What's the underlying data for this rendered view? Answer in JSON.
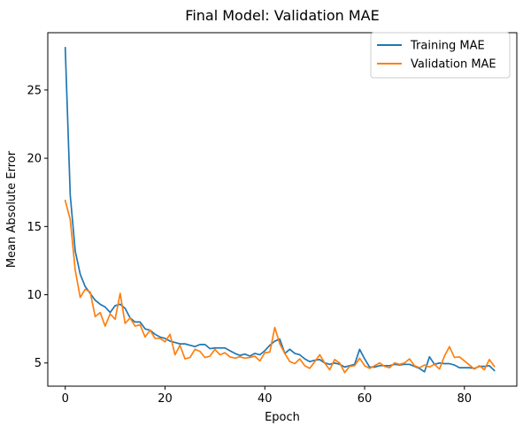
{
  "chart_data": {
    "type": "line",
    "title": "Final Model: Validation MAE",
    "xlabel": "Epoch",
    "ylabel": "Mean Absolute Error",
    "xlim": [
      -3.5,
      90.5
    ],
    "ylim": [
      3.3,
      29.2
    ],
    "xticks": [
      0,
      20,
      40,
      60,
      80
    ],
    "yticks": [
      5,
      10,
      15,
      20,
      25
    ],
    "grid": false,
    "legend_position": "top-right",
    "series": [
      {
        "name": "Training MAE",
        "color": "#1f77b4",
        "x": [
          0,
          1,
          2,
          3,
          4,
          5,
          6,
          7,
          8,
          9,
          10,
          11,
          12,
          13,
          14,
          15,
          16,
          17,
          18,
          19,
          20,
          21,
          22,
          23,
          24,
          25,
          26,
          27,
          28,
          29,
          30,
          31,
          32,
          33,
          34,
          35,
          36,
          37,
          38,
          39,
          40,
          41,
          42,
          43,
          44,
          45,
          46,
          47,
          48,
          49,
          50,
          51,
          52,
          53,
          54,
          55,
          56,
          57,
          58,
          59,
          60,
          61,
          62,
          63,
          64,
          65,
          66,
          67,
          68,
          69,
          70,
          71,
          72,
          73,
          74,
          75,
          76,
          77,
          78,
          79,
          80,
          81,
          82,
          83,
          84,
          85,
          86
        ],
        "values": [
          28.1,
          17.3,
          13.2,
          11.5,
          10.6,
          10.1,
          9.6,
          9.3,
          9.1,
          8.7,
          9.2,
          9.3,
          9.0,
          8.3,
          8.0,
          8.0,
          7.5,
          7.4,
          7.1,
          6.9,
          6.8,
          6.6,
          6.5,
          6.4,
          6.4,
          6.3,
          6.2,
          6.35,
          6.35,
          6.05,
          6.1,
          6.1,
          6.1,
          5.9,
          5.7,
          5.55,
          5.65,
          5.5,
          5.7,
          5.6,
          5.9,
          6.3,
          6.6,
          6.75,
          5.7,
          6.0,
          5.7,
          5.6,
          5.3,
          5.1,
          5.2,
          5.25,
          5.0,
          4.9,
          5.0,
          4.9,
          4.7,
          4.8,
          4.9,
          6.0,
          5.3,
          4.7,
          4.7,
          4.8,
          4.8,
          4.8,
          4.9,
          4.85,
          4.9,
          4.9,
          4.75,
          4.6,
          4.35,
          5.45,
          4.9,
          5.0,
          4.95,
          4.95,
          4.85,
          4.65,
          4.65,
          4.65,
          4.6,
          4.75,
          4.75,
          4.8,
          4.45
        ]
      },
      {
        "name": "Validation MAE",
        "color": "#ff7f0e",
        "x": [
          0,
          1,
          2,
          3,
          4,
          5,
          6,
          7,
          8,
          9,
          10,
          11,
          12,
          13,
          14,
          15,
          16,
          17,
          18,
          19,
          20,
          21,
          22,
          23,
          24,
          25,
          26,
          27,
          28,
          29,
          30,
          31,
          32,
          33,
          34,
          35,
          36,
          37,
          38,
          39,
          40,
          41,
          42,
          43,
          44,
          45,
          46,
          47,
          48,
          49,
          50,
          51,
          52,
          53,
          54,
          55,
          56,
          57,
          58,
          59,
          60,
          61,
          62,
          63,
          64,
          65,
          66,
          67,
          68,
          69,
          70,
          71,
          72,
          73,
          74,
          75,
          76,
          77,
          78,
          79,
          80,
          81,
          82,
          83,
          84,
          85,
          86
        ],
        "values": [
          16.9,
          15.5,
          11.8,
          9.8,
          10.4,
          10.2,
          8.4,
          8.7,
          7.7,
          8.6,
          8.2,
          10.1,
          7.9,
          8.3,
          7.7,
          7.8,
          6.9,
          7.4,
          6.8,
          6.8,
          6.55,
          7.1,
          5.6,
          6.3,
          5.3,
          5.4,
          6.0,
          5.85,
          5.4,
          5.5,
          6.0,
          5.6,
          5.75,
          5.45,
          5.35,
          5.45,
          5.35,
          5.4,
          5.5,
          5.15,
          5.75,
          5.8,
          7.6,
          6.4,
          5.7,
          5.1,
          4.95,
          5.3,
          4.8,
          4.6,
          5.1,
          5.6,
          5.0,
          4.5,
          5.25,
          5.0,
          4.3,
          4.75,
          4.8,
          5.35,
          4.8,
          4.6,
          4.8,
          5.0,
          4.75,
          4.65,
          5.0,
          4.9,
          5.0,
          5.3,
          4.8,
          4.65,
          4.85,
          4.7,
          4.9,
          4.55,
          5.5,
          6.2,
          5.4,
          5.45,
          5.15,
          4.85,
          4.55,
          4.8,
          4.5,
          5.25,
          4.75
        ]
      }
    ]
  }
}
